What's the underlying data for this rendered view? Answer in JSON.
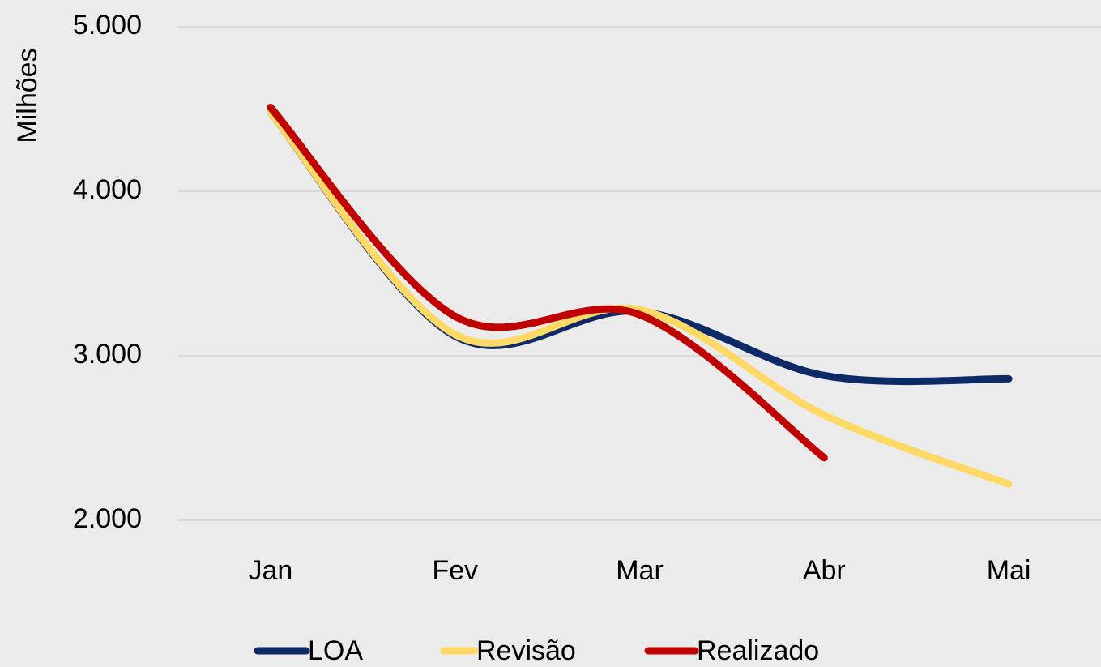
{
  "chart_data": {
    "type": "line",
    "y_axis_label": "Milhões",
    "categories": [
      "Jan",
      "Fev",
      "Mar",
      "Abr",
      "Mai"
    ],
    "series": [
      {
        "name": "LOA",
        "color": "#0e2a66",
        "values": [
          4480,
          3120,
          3270,
          2880,
          2860
        ]
      },
      {
        "name": "Revisão",
        "color": "#ffd966",
        "values": [
          4480,
          3130,
          3280,
          2640,
          2220
        ]
      },
      {
        "name": "Realizado",
        "color": "#c00000",
        "values": [
          4510,
          3240,
          3250,
          2380,
          null
        ]
      }
    ],
    "ylim": [
      2000,
      5000
    ],
    "yticks": [
      {
        "value": 2000,
        "label": "2.000"
      },
      {
        "value": 3000,
        "label": "3.000"
      },
      {
        "value": 4000,
        "label": "4.000"
      },
      {
        "value": 5000,
        "label": "5.000"
      }
    ],
    "grid": true,
    "smooth": true,
    "legend": "bottom"
  }
}
